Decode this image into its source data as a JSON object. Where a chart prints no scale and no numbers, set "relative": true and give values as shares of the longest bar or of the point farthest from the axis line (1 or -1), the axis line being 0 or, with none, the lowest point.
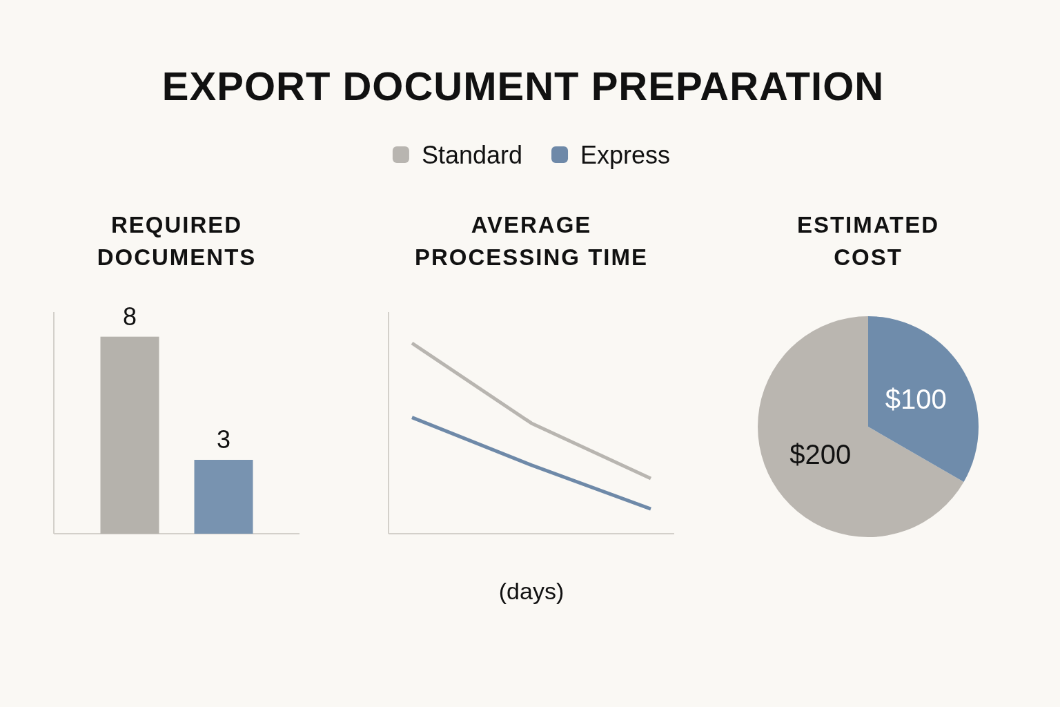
{
  "chart_data": [
    {
      "type": "other",
      "title": "EXPORT DOCUMENT PREPARATION"
    },
    {
      "type": "bar",
      "title": "REQUIRED DOCUMENTS",
      "categories": [
        null
      ],
      "series": [
        {
          "color": "#b5b2ac",
          "values": [
            8
          ]
        },
        {
          "color": "#7893b0",
          "values": [
            3
          ]
        }
      ],
      "ylim": [
        0,
        9
      ],
      "data_labels": true
    },
    {
      "type": "line",
      "title": "AVERAGE PROCESSING TIME",
      "xlabel": "(days)",
      "categories": [
        null,
        null,
        null
      ],
      "relative": true,
      "series": [
        {
          "name": "Standard",
          "color": "#b8b5b0",
          "values": [
            1,
            0.58,
            0.29
          ]
        },
        {
          "name": "Express",
          "color": "#6e89a8",
          "values": [
            0.61,
            0.36,
            0.13
          ]
        }
      ],
      "legend": "top"
    },
    {
      "type": "pie",
      "title": "ESTIMATED COST",
      "categories": [
        null,
        null
      ],
      "values": [
        200,
        100
      ],
      "colors": [
        "#bab6b0",
        "#6f8cab"
      ],
      "value_labels": [
        "$200",
        "$100"
      ]
    }
  ]
}
